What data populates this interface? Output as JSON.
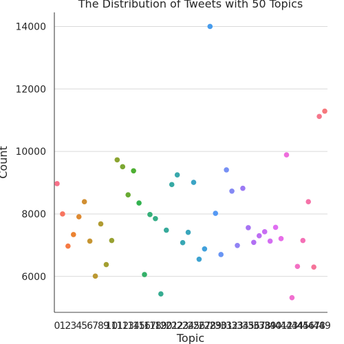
{
  "chart_data": {
    "type": "scatter",
    "title": "The Distribution of Tweets with 50 Topics",
    "xlabel": "Topic",
    "ylabel": "Count",
    "x": [
      0,
      1,
      2,
      3,
      4,
      5,
      6,
      7,
      8,
      9,
      10,
      11,
      12,
      13,
      14,
      15,
      16,
      17,
      18,
      19,
      20,
      21,
      22,
      23,
      24,
      25,
      26,
      27,
      28,
      29,
      30,
      31,
      32,
      33,
      34,
      35,
      36,
      37,
      38,
      39,
      40,
      41,
      42,
      43,
      44,
      45,
      46,
      47,
      48,
      49
    ],
    "values": [
      8970,
      8000,
      6970,
      7340,
      7910,
      8390,
      7130,
      6010,
      7680,
      6380,
      7150,
      9730,
      9510,
      8610,
      9380,
      8350,
      6060,
      7980,
      7850,
      5440,
      7480,
      8940,
      9250,
      7080,
      7410,
      9010,
      6550,
      6880,
      14000,
      8020,
      6700,
      9410,
      8730,
      6990,
      8820,
      7560,
      7090,
      7300,
      7430,
      7130,
      7570,
      7210,
      9890,
      5320,
      6320,
      7150,
      8390,
      6300,
      11120,
      11290
    ],
    "colors": [
      "#f77189",
      "#f7745f",
      "#f67a44",
      "#eb8231",
      "#de8a32",
      "#d18f32",
      "#c69532",
      "#bb9832",
      "#b09b32",
      "#a39f31",
      "#98a131",
      "#8ba431",
      "#7ba732",
      "#68aa32",
      "#4eaf32",
      "#32b24f",
      "#34b069",
      "#35af79",
      "#36ad86",
      "#36ac91",
      "#37aa9b",
      "#37a9a4",
      "#38a8ac",
      "#38a7b4",
      "#39a6bc",
      "#3ba4c5",
      "#3da2d0",
      "#40a0dc",
      "#479ced",
      "#5599f4",
      "#6895f4",
      "#7790f4",
      "#8489f4",
      "#9082f4",
      "#9b79f4",
      "#a673f3",
      "#b16ff3",
      "#bd6ef3",
      "#c86ef3",
      "#d46ef2",
      "#df6ef1",
      "#e76de8",
      "#ee6ddc",
      "#f16fd0",
      "#f370c3",
      "#f470b6",
      "#f572a8",
      "#f57499",
      "#f5768b",
      "#f6787d"
    ],
    "ylim": [
      4850,
      14450
    ],
    "yticks": [
      6000,
      8000,
      10000,
      12000,
      14000
    ],
    "ytick_labels": [
      "6000",
      "8000",
      "10000",
      "12000",
      "14000"
    ],
    "xtick_labels": [
      "0",
      "1",
      "2",
      "3",
      "4",
      "5",
      "6",
      "7",
      "8",
      "9",
      "10",
      "11",
      "12",
      "13",
      "14",
      "15",
      "16",
      "17",
      "18",
      "19",
      "20",
      "21",
      "22",
      "23",
      "24",
      "25",
      "26",
      "27",
      "28",
      "29",
      "30",
      "31",
      "32",
      "33",
      "34",
      "35",
      "36",
      "37",
      "38",
      "39",
      "40",
      "41",
      "42",
      "43",
      "44",
      "45",
      "46",
      "47",
      "48",
      "49"
    ],
    "grid": "y",
    "legend": "none"
  }
}
